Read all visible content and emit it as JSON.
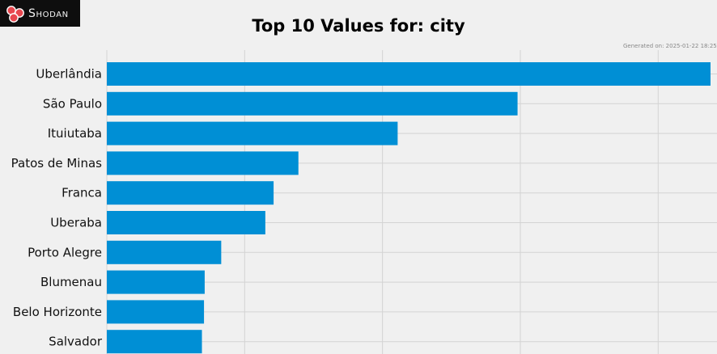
{
  "header": {
    "logo_text": "Shodan",
    "generated_text": "Generated on: 2025-01-22 18:25:26"
  },
  "colors": {
    "bar": "#008fd5",
    "grid": "#d3d3d3",
    "background": "#f0f0f0",
    "logo_bg": "#0e0e0e",
    "logo_mark": "#e8474f"
  },
  "icons": {
    "logo": "shodan-logo-icon"
  },
  "chart_data": {
    "type": "bar",
    "orientation": "horizontal",
    "title": "Top 10 Values for: city",
    "xlabel": "",
    "ylabel": "",
    "grid": true,
    "categories": [
      "Uberlândia",
      "São Paulo",
      "Ituiutaba",
      "Patos de Minas",
      "Franca",
      "Uberaba",
      "Porto Alegre",
      "Blumenau",
      "Belo Horizonte",
      "Salvador"
    ],
    "values": [
      4380,
      2980,
      2110,
      1390,
      1210,
      1150,
      830,
      710,
      705,
      690
    ],
    "xlim": [
      0,
      4400
    ]
  }
}
